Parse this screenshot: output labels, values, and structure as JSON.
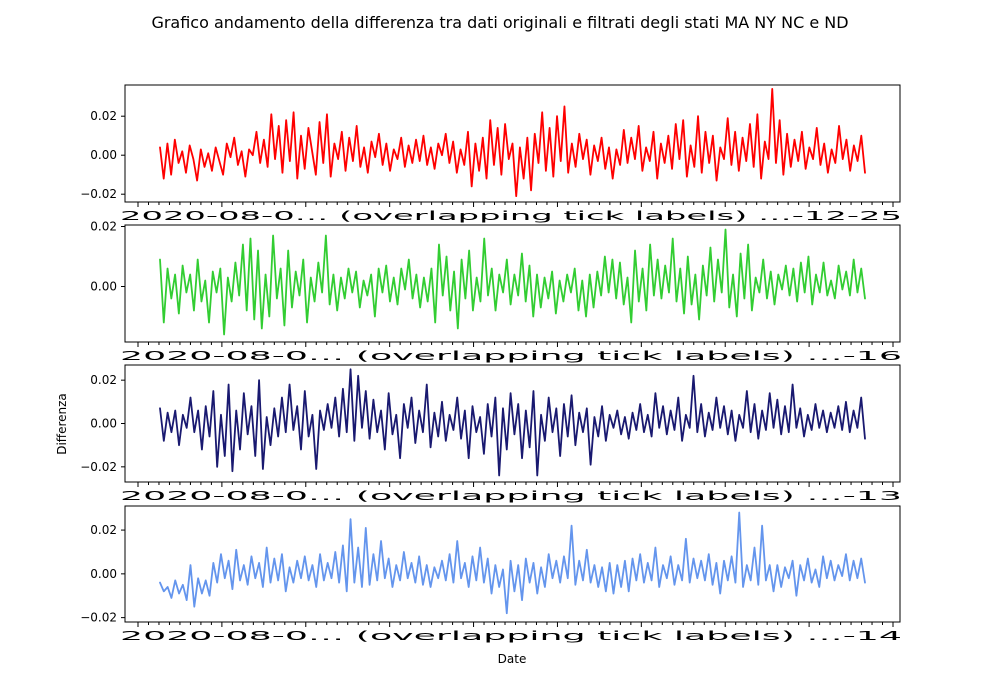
{
  "chart_data": {
    "title": "Grafico andamento della differenza tra dati originali e filtrati degli stati MA NY NC e ND",
    "xlabel": "Date",
    "ylabel": "Differenza",
    "type": "line",
    "panels": [
      {
        "color": "#ff0000",
        "ylim": [
          -0.024,
          0.036
        ],
        "yticks": [
          -0.02,
          0.0,
          0.02
        ],
        "ytick_labels": [
          "−0.02",
          "0.00",
          "0.02"
        ],
        "xtick_text": "2020-08-0… (overlapping tick labels) …-12-25",
        "values": [
          0.004,
          -0.012,
          0.006,
          -0.01,
          0.008,
          -0.004,
          0.002,
          -0.009,
          0.005,
          -0.002,
          -0.013,
          0.003,
          -0.006,
          0.001,
          -0.008,
          0.004,
          -0.003,
          -0.01,
          0.006,
          -0.001,
          0.009,
          -0.005,
          0.002,
          -0.011,
          0.003,
          0.0,
          0.012,
          -0.004,
          0.008,
          -0.006,
          0.021,
          -0.002,
          0.015,
          -0.009,
          0.018,
          -0.003,
          0.022,
          -0.012,
          0.01,
          -0.007,
          0.014,
          0.002,
          -0.01,
          0.017,
          -0.004,
          0.021,
          -0.011,
          0.006,
          -0.002,
          0.012,
          -0.008,
          0.009,
          -0.003,
          0.015,
          -0.006,
          0.004,
          -0.009,
          0.007,
          -0.001,
          0.011,
          -0.005,
          0.006,
          -0.008,
          0.003,
          -0.002,
          0.009,
          -0.006,
          0.005,
          -0.004,
          0.008,
          -0.003,
          0.01,
          -0.005,
          0.004,
          -0.007,
          0.006,
          0.0,
          0.011,
          -0.004,
          0.007,
          -0.009,
          0.003,
          -0.005,
          0.012,
          -0.016,
          0.006,
          -0.008,
          0.009,
          -0.012,
          0.018,
          -0.005,
          0.014,
          -0.01,
          0.016,
          -0.002,
          0.006,
          -0.021,
          0.004,
          -0.012,
          0.009,
          -0.018,
          0.011,
          -0.004,
          0.022,
          -0.008,
          0.014,
          -0.011,
          0.02,
          -0.003,
          0.025,
          -0.009,
          0.006,
          -0.006,
          0.011,
          -0.002,
          0.008,
          -0.01,
          0.005,
          -0.003,
          0.009,
          -0.007,
          0.004,
          -0.012,
          0.003,
          -0.005,
          0.013,
          -0.004,
          0.009,
          -0.002,
          0.015,
          -0.008,
          0.004,
          -0.003,
          0.012,
          -0.012,
          0.006,
          -0.004,
          0.01,
          -0.007,
          0.016,
          -0.002,
          0.018,
          -0.011,
          0.005,
          -0.006,
          0.02,
          -0.009,
          0.012,
          -0.004,
          0.01,
          -0.013,
          0.004,
          -0.002,
          0.019,
          -0.005,
          0.012,
          -0.008,
          0.009,
          -0.003,
          0.016,
          -0.006,
          0.021,
          -0.012,
          0.007,
          -0.002,
          0.034,
          -0.004,
          0.018,
          -0.01,
          0.011,
          -0.006,
          0.008,
          -0.003,
          0.012,
          -0.007,
          0.004,
          -0.002,
          0.014,
          -0.005,
          0.006,
          -0.009,
          0.003,
          -0.004,
          0.015,
          -0.002,
          0.008,
          -0.008,
          0.005,
          -0.003,
          0.01,
          -0.009
        ]
      },
      {
        "color": "#32cd32",
        "ylim": [
          -0.0185,
          0.0205
        ],
        "yticks": [
          0.0,
          0.02
        ],
        "ytick_labels": [
          "0.00",
          "0.02"
        ],
        "xtick_text": "2020-08-0… (overlapping tick labels) …-16",
        "values": [
          0.009,
          -0.012,
          0.006,
          -0.004,
          0.004,
          -0.009,
          0.007,
          -0.002,
          0.004,
          -0.008,
          0.009,
          -0.005,
          0.002,
          -0.012,
          0.005,
          -0.002,
          0.006,
          -0.016,
          0.003,
          -0.005,
          0.008,
          -0.003,
          0.014,
          -0.008,
          0.016,
          -0.011,
          0.012,
          -0.014,
          0.004,
          -0.01,
          0.017,
          -0.004,
          0.006,
          -0.013,
          0.012,
          -0.007,
          0.005,
          -0.003,
          0.009,
          -0.012,
          0.003,
          -0.005,
          0.008,
          -0.002,
          0.017,
          -0.006,
          0.004,
          -0.008,
          0.003,
          -0.004,
          0.006,
          -0.002,
          0.005,
          -0.007,
          0.002,
          -0.003,
          0.004,
          -0.01,
          0.006,
          -0.002,
          0.007,
          -0.005,
          0.003,
          -0.006,
          0.006,
          -0.001,
          0.009,
          -0.004,
          0.004,
          -0.007,
          0.003,
          -0.005,
          0.006,
          -0.012,
          0.014,
          -0.003,
          0.01,
          -0.008,
          0.005,
          -0.014,
          0.009,
          -0.004,
          0.012,
          -0.008,
          0.003,
          -0.005,
          0.016,
          -0.003,
          0.006,
          -0.008,
          0.004,
          -0.002,
          0.009,
          -0.006,
          0.004,
          -0.003,
          0.011,
          -0.005,
          0.007,
          -0.01,
          0.004,
          -0.007,
          0.003,
          -0.004,
          0.005,
          -0.009,
          0.002,
          -0.005,
          0.004,
          -0.002,
          0.006,
          -0.008,
          0.002,
          -0.01,
          0.004,
          -0.007,
          0.005,
          -0.003,
          0.01,
          -0.002,
          0.009,
          -0.004,
          0.008,
          -0.006,
          0.003,
          -0.012,
          0.012,
          -0.005,
          0.006,
          -0.008,
          0.014,
          -0.003,
          0.009,
          -0.004,
          0.007,
          -0.002,
          0.016,
          -0.005,
          0.006,
          -0.009,
          0.01,
          -0.006,
          0.004,
          -0.011,
          0.007,
          -0.003,
          0.013,
          -0.005,
          0.009,
          -0.002,
          0.019,
          -0.007,
          0.004,
          -0.01,
          0.011,
          -0.004,
          0.014,
          -0.008,
          0.003,
          -0.002,
          0.009,
          -0.004,
          0.005,
          -0.006,
          0.004,
          -0.001,
          0.007,
          -0.003,
          0.006,
          -0.005,
          0.008,
          -0.002,
          0.01,
          -0.006,
          0.004,
          -0.002,
          0.008,
          -0.003,
          0.002,
          -0.004,
          0.007,
          -0.001,
          0.005,
          -0.003,
          0.009,
          -0.002,
          0.006,
          -0.004
        ]
      },
      {
        "color": "#191970",
        "ylim": [
          -0.027,
          0.027
        ],
        "yticks": [
          -0.02,
          0.0,
          0.02
        ],
        "ytick_labels": [
          "−0.02",
          "0.00",
          "0.02"
        ],
        "xtick_text": "2020-08-0… (overlapping tick labels) …-13",
        "values": [
          0.007,
          -0.008,
          0.005,
          -0.004,
          0.006,
          -0.01,
          0.004,
          -0.002,
          0.012,
          -0.004,
          0.006,
          -0.012,
          0.008,
          -0.006,
          0.015,
          -0.02,
          0.004,
          -0.015,
          0.018,
          -0.022,
          0.006,
          -0.012,
          0.014,
          -0.005,
          0.008,
          -0.015,
          0.02,
          -0.021,
          0.003,
          -0.01,
          0.007,
          -0.006,
          0.012,
          -0.004,
          0.018,
          -0.003,
          0.008,
          -0.012,
          0.015,
          -0.006,
          0.004,
          -0.021,
          0.006,
          -0.003,
          0.009,
          -0.002,
          0.012,
          -0.006,
          0.016,
          -0.004,
          0.025,
          -0.008,
          0.022,
          -0.002,
          0.015,
          -0.007,
          0.011,
          -0.004,
          0.006,
          -0.012,
          0.014,
          -0.005,
          0.004,
          -0.016,
          0.009,
          -0.002,
          0.012,
          -0.009,
          0.006,
          -0.004,
          0.018,
          -0.011,
          0.005,
          -0.006,
          0.01,
          -0.008,
          0.004,
          -0.003,
          0.012,
          -0.007,
          0.006,
          -0.016,
          0.008,
          -0.004,
          0.003,
          -0.014,
          0.009,
          -0.006,
          0.012,
          -0.024,
          0.007,
          -0.012,
          0.014,
          -0.005,
          0.009,
          -0.016,
          0.006,
          -0.011,
          0.015,
          -0.024,
          0.004,
          -0.008,
          0.012,
          -0.004,
          0.007,
          -0.015,
          0.009,
          -0.006,
          0.013,
          -0.01,
          0.005,
          -0.004,
          0.007,
          -0.019,
          0.003,
          -0.006,
          0.008,
          -0.008,
          0.004,
          -0.002,
          0.006,
          -0.005,
          0.003,
          -0.007,
          0.005,
          -0.003,
          0.009,
          -0.004,
          0.004,
          -0.006,
          0.014,
          -0.002,
          0.008,
          -0.005,
          0.006,
          -0.003,
          0.012,
          -0.008,
          0.004,
          -0.002,
          0.022,
          -0.004,
          0.009,
          -0.006,
          0.005,
          -0.003,
          0.012,
          -0.002,
          0.008,
          -0.005,
          0.006,
          -0.008,
          0.004,
          -0.002,
          0.015,
          -0.004,
          0.009,
          -0.007,
          0.006,
          -0.003,
          0.014,
          -0.002,
          0.011,
          -0.005,
          0.008,
          -0.004,
          0.018,
          -0.002,
          0.007,
          -0.006,
          0.004,
          -0.003,
          0.009,
          -0.002,
          0.006,
          -0.004,
          0.005,
          -0.002,
          0.008,
          -0.003,
          0.01,
          -0.004,
          0.006,
          -0.002,
          0.012,
          -0.007
        ]
      },
      {
        "color": "#6495ed",
        "ylim": [
          -0.022,
          0.031
        ],
        "yticks": [
          -0.02,
          0.0,
          0.02
        ],
        "ytick_labels": [
          "−0.02",
          "0.00",
          "0.02"
        ],
        "xtick_text": "2020-08-0… (overlapping tick labels) …-14",
        "values": [
          -0.004,
          -0.008,
          -0.006,
          -0.011,
          -0.003,
          -0.009,
          -0.005,
          -0.012,
          0.004,
          -0.015,
          -0.002,
          -0.009,
          -0.003,
          -0.01,
          0.005,
          -0.004,
          0.009,
          -0.002,
          0.006,
          -0.007,
          0.011,
          -0.003,
          0.004,
          -0.005,
          0.008,
          -0.002,
          0.005,
          -0.006,
          0.012,
          -0.004,
          0.007,
          -0.003,
          0.009,
          -0.008,
          0.003,
          -0.004,
          0.006,
          -0.002,
          0.008,
          -0.003,
          0.004,
          -0.006,
          0.009,
          -0.003,
          0.005,
          -0.002,
          0.01,
          -0.004,
          0.013,
          -0.008,
          0.025,
          -0.004,
          0.012,
          -0.006,
          0.021,
          -0.005,
          0.009,
          -0.003,
          0.015,
          -0.002,
          0.007,
          -0.006,
          0.004,
          -0.003,
          0.01,
          -0.002,
          0.005,
          -0.004,
          0.008,
          -0.005,
          0.004,
          -0.006,
          0.003,
          -0.002,
          0.006,
          -0.003,
          0.009,
          -0.004,
          0.015,
          -0.002,
          0.005,
          -0.006,
          0.008,
          -0.003,
          0.012,
          -0.004,
          0.007,
          -0.009,
          0.004,
          -0.006,
          0.002,
          -0.018,
          0.006,
          -0.008,
          0.004,
          -0.012,
          0.007,
          -0.004,
          0.005,
          -0.009,
          0.003,
          -0.006,
          0.009,
          -0.002,
          0.006,
          -0.004,
          0.008,
          -0.002,
          0.022,
          -0.005,
          0.006,
          -0.003,
          0.011,
          -0.004,
          0.004,
          -0.006,
          0.003,
          -0.008,
          0.005,
          -0.009,
          0.004,
          -0.006,
          0.006,
          -0.008,
          0.007,
          -0.003,
          0.009,
          -0.004,
          0.005,
          -0.003,
          0.012,
          -0.006,
          0.004,
          -0.002,
          0.008,
          -0.005,
          0.004,
          -0.003,
          0.016,
          -0.004,
          0.007,
          -0.002,
          0.006,
          -0.003,
          0.009,
          -0.005,
          0.005,
          -0.009,
          0.006,
          -0.003,
          0.008,
          -0.004,
          0.028,
          -0.006,
          0.004,
          -0.003,
          0.012,
          -0.005,
          0.022,
          -0.003,
          0.004,
          -0.008,
          0.004,
          -0.006,
          0.003,
          -0.002,
          0.006,
          -0.01,
          0.004,
          -0.003,
          0.007,
          -0.004,
          0.002,
          -0.006,
          0.008,
          -0.002,
          0.006,
          -0.003,
          0.004,
          -0.001,
          0.009,
          -0.003,
          0.006,
          -0.002,
          0.007,
          -0.004
        ]
      }
    ]
  }
}
